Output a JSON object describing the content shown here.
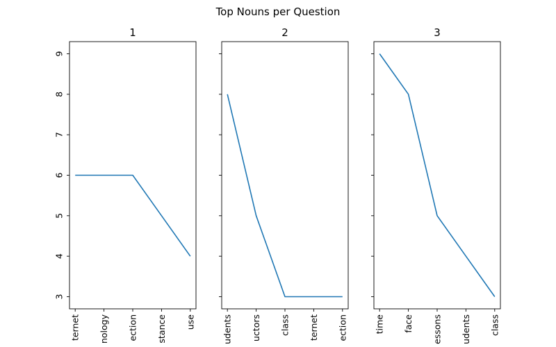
{
  "figure": {
    "suptitle": "Top Nouns per Question"
  },
  "chart_data": [
    {
      "type": "line",
      "title": "1",
      "categories": [
        "Internet",
        "technology",
        "connection",
        "distance",
        "use"
      ],
      "tick_labels_visible": [
        "ternet",
        "nology",
        "ection",
        "stance",
        "use"
      ],
      "values": [
        6,
        6,
        6,
        5,
        4
      ],
      "ylim": [
        2.7,
        9.3
      ],
      "yticks": [
        3,
        4,
        5,
        6,
        7,
        8,
        9
      ],
      "show_ytick_labels": true,
      "color": "#1f77b4",
      "grid": false
    },
    {
      "type": "line",
      "title": "2",
      "categories": [
        "students",
        "instructors",
        "class",
        "Internet",
        "connection"
      ],
      "tick_labels_visible": [
        "udents",
        "uctors",
        "class",
        "ternet",
        "ection"
      ],
      "values": [
        8,
        5,
        3,
        3,
        3
      ],
      "ylim": [
        2.7,
        9.3
      ],
      "yticks": [
        3,
        4,
        5,
        6,
        7,
        8,
        9
      ],
      "show_ytick_labels": false,
      "color": "#1f77b4",
      "grid": false
    },
    {
      "type": "line",
      "title": "3",
      "categories": [
        "time",
        "face",
        "lessons",
        "students",
        "class"
      ],
      "tick_labels_visible": [
        "time",
        "face",
        "essons",
        "udents",
        "class"
      ],
      "values": [
        9,
        8,
        5,
        4,
        3
      ],
      "ylim": [
        2.7,
        9.3
      ],
      "yticks": [
        3,
        4,
        5,
        6,
        7,
        8,
        9
      ],
      "show_ytick_labels": false,
      "color": "#1f77b4",
      "grid": false
    }
  ]
}
